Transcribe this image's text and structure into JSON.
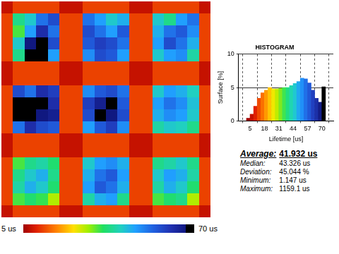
{
  "chart_data": [
    {
      "type": "heatmap",
      "cells": [
        [
          8,
          13,
          13,
          13,
          13,
          8,
          8,
          13,
          13,
          13,
          13,
          8,
          8,
          13,
          13,
          13,
          13,
          8
        ],
        [
          13,
          40,
          45,
          55,
          60,
          13,
          13,
          55,
          50,
          45,
          48,
          13,
          13,
          45,
          40,
          50,
          55,
          13
        ],
        [
          13,
          35,
          50,
          65,
          55,
          13,
          13,
          60,
          55,
          50,
          58,
          13,
          13,
          48,
          55,
          58,
          52,
          13
        ],
        [
          13,
          45,
          70,
          75,
          60,
          13,
          13,
          58,
          62,
          60,
          55,
          13,
          13,
          50,
          60,
          55,
          48,
          13
        ],
        [
          13,
          40,
          72,
          78,
          50,
          13,
          13,
          52,
          60,
          58,
          50,
          13,
          13,
          45,
          50,
          52,
          42,
          13
        ],
        [
          8,
          13,
          13,
          13,
          13,
          8,
          8,
          13,
          13,
          13,
          13,
          8,
          8,
          13,
          13,
          13,
          13,
          8
        ],
        [
          8,
          13,
          13,
          13,
          13,
          8,
          8,
          13,
          13,
          13,
          13,
          8,
          8,
          13,
          13,
          13,
          13,
          8
        ],
        [
          13,
          60,
          55,
          65,
          62,
          13,
          13,
          52,
          58,
          60,
          55,
          13,
          13,
          45,
          50,
          48,
          44,
          13
        ],
        [
          13,
          72,
          75,
          80,
          65,
          13,
          13,
          62,
          68,
          72,
          58,
          13,
          13,
          50,
          55,
          52,
          46,
          13
        ],
        [
          13,
          75,
          78,
          70,
          68,
          13,
          13,
          60,
          75,
          70,
          60,
          13,
          13,
          48,
          52,
          50,
          45,
          13
        ],
        [
          13,
          55,
          65,
          60,
          58,
          13,
          13,
          50,
          58,
          62,
          52,
          13,
          13,
          42,
          45,
          44,
          40,
          13
        ],
        [
          8,
          13,
          13,
          13,
          13,
          8,
          8,
          13,
          13,
          13,
          13,
          8,
          8,
          13,
          13,
          13,
          13,
          8
        ],
        [
          8,
          13,
          13,
          13,
          13,
          8,
          8,
          13,
          13,
          13,
          13,
          8,
          8,
          13,
          13,
          13,
          13,
          8
        ],
        [
          13,
          35,
          40,
          42,
          38,
          13,
          13,
          45,
          50,
          52,
          48,
          13,
          13,
          40,
          42,
          45,
          40,
          13
        ],
        [
          13,
          40,
          45,
          48,
          40,
          13,
          13,
          48,
          55,
          58,
          50,
          13,
          13,
          45,
          50,
          48,
          42,
          13
        ],
        [
          13,
          42,
          48,
          45,
          38,
          13,
          13,
          50,
          58,
          55,
          48,
          13,
          13,
          42,
          48,
          45,
          38,
          13
        ],
        [
          13,
          35,
          38,
          36,
          30,
          13,
          13,
          42,
          48,
          50,
          40,
          13,
          13,
          35,
          38,
          40,
          30,
          13
        ],
        [
          8,
          13,
          13,
          13,
          13,
          8,
          8,
          13,
          13,
          13,
          13,
          8,
          8,
          13,
          13,
          13,
          13,
          8
        ]
      ],
      "colorbar": {
        "range": [
          5,
          70
        ],
        "ticks": [
          {
            "value": 5,
            "label": "5 us"
          },
          {
            "value": 70,
            "label": "70 us"
          }
        ]
      }
    },
    {
      "type": "histogram",
      "title": "HISTOGRAM",
      "xlabel": "Lifetime [us]",
      "ylabel": "Surface [%]",
      "bins": [
        1.75,
        5,
        8.25,
        11.5,
        14.75,
        18,
        21.25,
        24.5,
        27.75,
        31,
        34.25,
        37.5,
        40.75,
        44,
        47.25,
        50.5,
        53.75,
        57,
        60.25,
        63.5,
        66.75,
        70,
        73.25
      ],
      "counts": [
        0.4,
        1.0,
        2.2,
        3.4,
        4.2,
        4.6,
        5.0,
        4.8,
        4.8,
        4.9,
        5.0,
        5.0,
        5.3,
        5.6,
        5.9,
        6.4,
        6.3,
        5.7,
        4.6,
        3.4,
        2.8,
        5.1
      ],
      "colors": [
        "#a00000",
        "#c41000",
        "#e02000",
        "#f04a00",
        "#fa7000",
        "#ff9a00",
        "#ffc400",
        "#f0e800",
        "#c0ec00",
        "#80e820",
        "#40e450",
        "#20de80",
        "#20d6b0",
        "#20c8d0",
        "#20a8f0",
        "#2090f8",
        "#2070e8",
        "#2058d8",
        "#2040c0",
        "#1c30a8",
        "#141e88",
        "#000000"
      ],
      "xlim": [
        1.75,
        73.25
      ],
      "ylim": [
        0,
        10
      ],
      "xticks": [
        5,
        18,
        31,
        44,
        57,
        70
      ],
      "yticks": [
        0,
        5,
        10
      ],
      "grid": true
    }
  ],
  "statistics": [
    {
      "label": "Average:",
      "value": "41.932 us"
    },
    {
      "label": "Median:",
      "value": "43.326 us"
    },
    {
      "label": "Deviation:",
      "value": "45.044 %"
    },
    {
      "label": "Minimum:",
      "value": "1.147 us"
    },
    {
      "label": "Maximum:",
      "value": "1159.1 us"
    }
  ]
}
